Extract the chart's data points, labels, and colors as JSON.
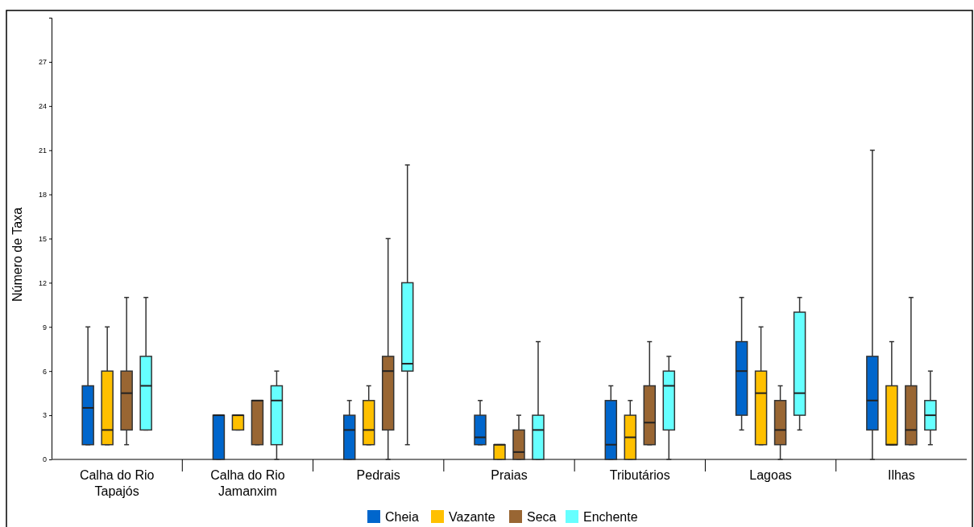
{
  "chart_data": {
    "type": "box",
    "ylabel": "Número de Taxa",
    "categories": [
      "Calha do Rio\nTapajós",
      "Calha do Rio\nJamanxim",
      "Pedrais",
      "Praias",
      "Tributários",
      "Lagoas",
      "Ilhas"
    ],
    "ylim": [
      0,
      30
    ],
    "yticks": [
      0,
      3,
      6,
      9,
      12,
      15,
      18,
      21,
      24,
      27
    ],
    "grid": false,
    "legend": "bottom",
    "series": [
      {
        "name": "Cheia",
        "color": "#0066cc",
        "boxes": [
          {
            "low": 1,
            "q1": 1,
            "median": 3.5,
            "q3": 5,
            "high": 9
          },
          {
            "low": 0,
            "q1": 0,
            "median": 3,
            "q3": 3,
            "high": 3
          },
          {
            "low": 0,
            "q1": 0,
            "median": 2,
            "q3": 3,
            "high": 4
          },
          {
            "low": 1,
            "q1": 1,
            "median": 1.5,
            "q3": 3,
            "high": 4
          },
          {
            "low": 0,
            "q1": 0,
            "median": 1,
            "q3": 4,
            "high": 5
          },
          {
            "low": 2,
            "q1": 3,
            "median": 6,
            "q3": 8,
            "high": 11
          },
          {
            "low": 0,
            "q1": 2,
            "median": 4,
            "q3": 7,
            "high": 21
          }
        ]
      },
      {
        "name": "Vazante",
        "color": "#ffc000",
        "boxes": [
          {
            "low": 1,
            "q1": 1,
            "median": 2,
            "q3": 6,
            "high": 9
          },
          {
            "low": 2,
            "q1": 2,
            "median": 3,
            "q3": 3,
            "high": 3
          },
          {
            "low": 1,
            "q1": 1,
            "median": 2,
            "q3": 4,
            "high": 5
          },
          {
            "low": 0,
            "q1": 0,
            "median": 1,
            "q3": 1,
            "high": 1
          },
          {
            "low": 0,
            "q1": 0,
            "median": 1.5,
            "q3": 3,
            "high": 4
          },
          {
            "low": 1,
            "q1": 1,
            "median": 4.5,
            "q3": 6,
            "high": 9
          },
          {
            "low": 1,
            "q1": 1,
            "median": 1,
            "q3": 5,
            "high": 8
          }
        ]
      },
      {
        "name": "Seca",
        "color": "#996633",
        "boxes": [
          {
            "low": 1,
            "q1": 2,
            "median": 4.5,
            "q3": 6,
            "high": 11
          },
          {
            "low": 1,
            "q1": 1,
            "median": 4,
            "q3": 4,
            "high": 4
          },
          {
            "low": 0,
            "q1": 2,
            "median": 6,
            "q3": 7,
            "high": 15
          },
          {
            "low": 0,
            "q1": 0,
            "median": 0.5,
            "q3": 2,
            "high": 3
          },
          {
            "low": 1,
            "q1": 1,
            "median": 2.5,
            "q3": 5,
            "high": 8
          },
          {
            "low": 0,
            "q1": 1,
            "median": 2,
            "q3": 4,
            "high": 5
          },
          {
            "low": 1,
            "q1": 1,
            "median": 2,
            "q3": 5,
            "high": 11
          }
        ]
      },
      {
        "name": "Enchente",
        "color": "#66ffff",
        "boxes": [
          {
            "low": 2,
            "q1": 2,
            "median": 5,
            "q3": 7,
            "high": 11
          },
          {
            "low": 0,
            "q1": 1,
            "median": 4,
            "q3": 5,
            "high": 6
          },
          {
            "low": 1,
            "q1": 6,
            "median": 6.5,
            "q3": 12,
            "high": 20
          },
          {
            "low": 0,
            "q1": 0,
            "median": 2,
            "q3": 3,
            "high": 8
          },
          {
            "low": 0,
            "q1": 2,
            "median": 5,
            "q3": 6,
            "high": 7
          },
          {
            "low": 2,
            "q1": 3,
            "median": 4.5,
            "q3": 10,
            "high": 11
          },
          {
            "low": 1,
            "q1": 2,
            "median": 3,
            "q3": 4,
            "high": 6
          }
        ]
      }
    ]
  }
}
